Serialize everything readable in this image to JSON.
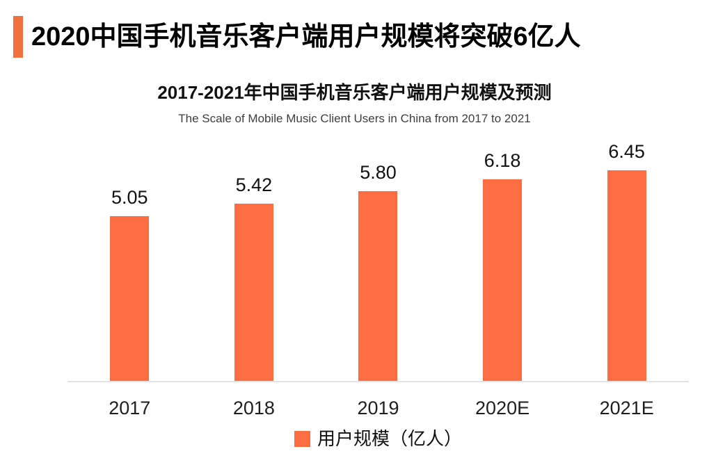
{
  "header": {
    "title": "2020中国手机音乐客户端用户规模将突破6亿人",
    "accent_color": "#F1703D"
  },
  "chart_data": {
    "type": "bar",
    "title": "2017-2021年中国手机音乐客户端用户规模及预测",
    "subtitle": "The Scale of Mobile Music Client Users in China from 2017 to 2021",
    "categories": [
      "2017",
      "2018",
      "2019",
      "2020E",
      "2021E"
    ],
    "values": [
      5.05,
      5.42,
      5.8,
      6.18,
      6.45
    ],
    "value_labels": [
      "5.05",
      "5.42",
      "5.80",
      "6.18",
      "6.45"
    ],
    "xlabel": "",
    "ylabel": "用户规模（亿人）",
    "ylim": [
      0,
      7.4
    ],
    "grid": false,
    "legend": [
      "用户规模（亿人）"
    ],
    "legend_position": "bottom",
    "bar_color": "#FC6E41",
    "axis_line_color": "#E3E3E3"
  }
}
